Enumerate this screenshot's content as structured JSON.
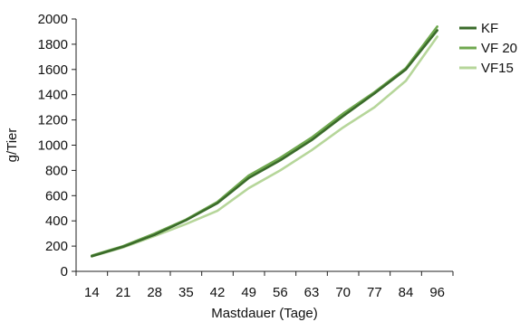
{
  "chart_data": {
    "type": "line",
    "title": "",
    "xlabel": "Mastdauer (Tage)",
    "ylabel": "g/Tier",
    "categories": [
      "14",
      "21",
      "28",
      "35",
      "42",
      "49",
      "56",
      "63",
      "70",
      "77",
      "84",
      "96"
    ],
    "ylim": [
      0,
      2000
    ],
    "yticks": [
      0,
      200,
      400,
      600,
      800,
      1000,
      1200,
      1400,
      1600,
      1800,
      2000
    ],
    "grid": false,
    "legend_position": "right",
    "series": [
      {
        "name": "KF",
        "color": "#3a6b2a",
        "values": [
          120,
          195,
          290,
          405,
          540,
          740,
          880,
          1040,
          1230,
          1410,
          1600,
          1910
        ]
      },
      {
        "name": "VF 20",
        "color": "#6fa84f",
        "values": [
          125,
          200,
          300,
          410,
          550,
          760,
          900,
          1060,
          1250,
          1420,
          1610,
          1940
        ]
      },
      {
        "name": "VF15",
        "color": "#b6d69a",
        "values": [
          118,
          190,
          280,
          375,
          480,
          660,
          800,
          960,
          1140,
          1300,
          1510,
          1860
        ]
      }
    ]
  }
}
